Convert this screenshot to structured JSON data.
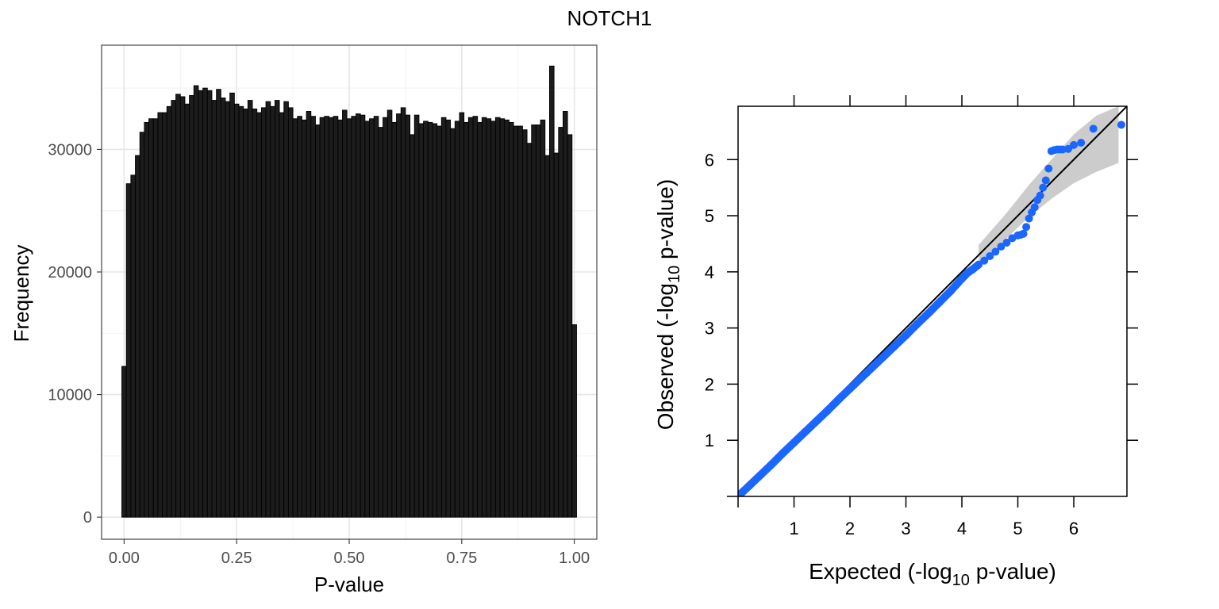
{
  "title": "NOTCH1",
  "colors": {
    "bar_fill": "#1c1c1c",
    "bar_stroke": "#000000",
    "grid": "#e6e6e6",
    "point": "#1a66ff",
    "band": "#cccccc",
    "axis_text": "#4d4d4d"
  },
  "chart_data": [
    {
      "type": "bar",
      "subtype": "histogram",
      "xlabel": "P-value",
      "ylabel": "Frequency",
      "xlim": [
        -0.05,
        1.05
      ],
      "ylim": [
        -1800,
        38500
      ],
      "x_ticks": [
        0.0,
        0.25,
        0.5,
        0.75,
        1.0
      ],
      "x_tick_labels": [
        "0.00",
        "0.25",
        "0.50",
        "0.75",
        "1.00"
      ],
      "y_ticks": [
        0,
        10000,
        20000,
        30000
      ],
      "y_tick_labels": [
        "0",
        "10000",
        "20000",
        "30000"
      ],
      "grid": true,
      "bin_width": 0.01,
      "bin_start": -0.005,
      "values": [
        12300,
        27200,
        27900,
        29500,
        31400,
        32200,
        32500,
        32500,
        33000,
        33000,
        33500,
        34000,
        34500,
        34300,
        33700,
        34400,
        35200,
        34800,
        35000,
        34800,
        34000,
        34900,
        34200,
        33900,
        34600,
        33700,
        33500,
        33300,
        34000,
        33300,
        33000,
        33400,
        33900,
        33500,
        34000,
        33000,
        33900,
        33400,
        32500,
        32700,
        32400,
        33100,
        32700,
        32000,
        32600,
        32700,
        32600,
        32700,
        32400,
        33200,
        32500,
        32700,
        32900,
        32800,
        32300,
        32500,
        32700,
        31800,
        32600,
        33200,
        32200,
        32900,
        33400,
        32800,
        31200,
        32800,
        32100,
        32300,
        32200,
        32100,
        31900,
        32600,
        32400,
        31700,
        32300,
        33000,
        32200,
        32600,
        32700,
        32200,
        32600,
        32500,
        32300,
        32600,
        32500,
        32400,
        32200,
        31900,
        31900,
        31600,
        30500,
        32000,
        32000,
        32400,
        29500,
        36800,
        29700,
        31800,
        33100,
        31200,
        15700
      ]
    },
    {
      "type": "scatter",
      "subtype": "qq-plot",
      "xlabel": {
        "pre": "Expected (-log",
        "sub": "10",
        "post": " p-value)"
      },
      "ylabel": {
        "pre": "Observed (-log",
        "sub": "10",
        "post": " p-value)"
      },
      "xlim": [
        0,
        6.95
      ],
      "ylim": [
        0,
        6.95
      ],
      "x_ticks": [
        1,
        2,
        3,
        4,
        5,
        6
      ],
      "y_ticks": [
        1,
        2,
        3,
        4,
        5,
        6
      ],
      "grid": false,
      "reference_line": "y = x",
      "confidence_band": [
        {
          "x": 4.3,
          "lo": 4.15,
          "hi": 4.48
        },
        {
          "x": 4.8,
          "lo": 4.6,
          "hi": 5.05
        },
        {
          "x": 5.2,
          "lo": 4.98,
          "hi": 5.55
        },
        {
          "x": 5.6,
          "lo": 5.3,
          "hi": 6.0
        },
        {
          "x": 6.0,
          "lo": 5.58,
          "hi": 6.45
        },
        {
          "x": 6.4,
          "lo": 5.78,
          "hi": 6.78
        },
        {
          "x": 6.8,
          "lo": 5.94,
          "hi": 6.95
        }
      ],
      "points": {
        "x": [
          0.05,
          0.2,
          0.4,
          0.6,
          0.8,
          1.0,
          1.2,
          1.4,
          1.6,
          1.8,
          2.0,
          2.2,
          2.4,
          2.6,
          2.8,
          3.0,
          3.2,
          3.4,
          3.6,
          3.8,
          3.9,
          4.0,
          4.1,
          4.2,
          4.3,
          4.4,
          4.5,
          4.6,
          4.7,
          4.8,
          4.9,
          5.0,
          5.05,
          5.1,
          5.15,
          5.2,
          5.25,
          5.3,
          5.35,
          5.4,
          5.45,
          5.5,
          5.55,
          5.6,
          5.65,
          5.7,
          5.75,
          5.8,
          5.9,
          6.0,
          6.13,
          6.35,
          6.85
        ],
        "y": [
          0.05,
          0.19,
          0.38,
          0.57,
          0.77,
          0.96,
          1.15,
          1.34,
          1.53,
          1.73,
          1.92,
          2.11,
          2.3,
          2.49,
          2.68,
          2.87,
          3.07,
          3.26,
          3.46,
          3.66,
          3.77,
          3.88,
          3.98,
          4.05,
          4.13,
          4.2,
          4.28,
          4.36,
          4.45,
          4.52,
          4.6,
          4.65,
          4.66,
          4.68,
          4.8,
          4.95,
          5.06,
          5.15,
          5.28,
          5.36,
          5.5,
          5.63,
          5.84,
          6.15,
          6.17,
          6.18,
          6.18,
          6.18,
          6.19,
          6.26,
          6.3,
          6.55,
          6.62
        ]
      }
    }
  ]
}
